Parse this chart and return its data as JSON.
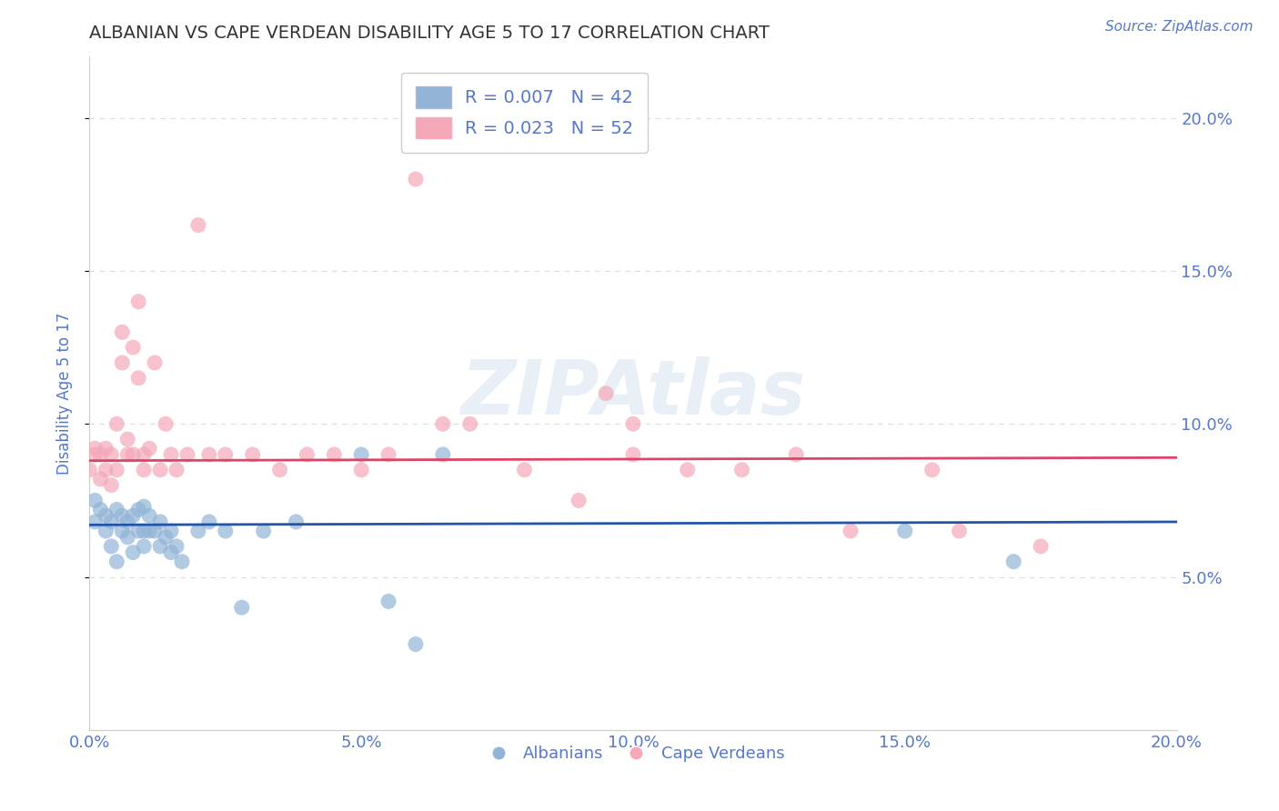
{
  "title": "ALBANIAN VS CAPE VERDEAN DISABILITY AGE 5 TO 17 CORRELATION CHART",
  "source_text": "Source: ZipAtlas.com",
  "ylabel": "Disability Age 5 to 17",
  "xlim": [
    0.0,
    0.2
  ],
  "ylim": [
    0.0,
    0.22
  ],
  "xticks": [
    0.0,
    0.05,
    0.1,
    0.15,
    0.2
  ],
  "xtick_labels": [
    "0.0%",
    "5.0%",
    "10.0%",
    "15.0%",
    "20.0%"
  ],
  "yticks": [
    0.05,
    0.1,
    0.15,
    0.2
  ],
  "ytick_labels": [
    "5.0%",
    "10.0%",
    "15.0%",
    "20.0%"
  ],
  "blue_color": "#92B4D7",
  "pink_color": "#F4A8B8",
  "blue_line_color": "#2255AA",
  "pink_line_color": "#DD4466",
  "legend_blue_r": "R = 0.007",
  "legend_blue_n": "N = 42",
  "legend_pink_r": "R = 0.023",
  "legend_pink_n": "N = 52",
  "blue_intercept": 0.067,
  "blue_slope": 0.005,
  "pink_intercept": 0.088,
  "pink_slope": 0.005,
  "albanians_x": [
    0.001,
    0.001,
    0.002,
    0.003,
    0.003,
    0.004,
    0.004,
    0.005,
    0.005,
    0.006,
    0.006,
    0.007,
    0.007,
    0.008,
    0.008,
    0.009,
    0.009,
    0.01,
    0.01,
    0.01,
    0.011,
    0.011,
    0.012,
    0.013,
    0.013,
    0.014,
    0.015,
    0.015,
    0.016,
    0.017,
    0.02,
    0.022,
    0.025,
    0.028,
    0.032,
    0.038,
    0.05,
    0.055,
    0.06,
    0.065,
    0.15,
    0.17
  ],
  "albanians_y": [
    0.068,
    0.075,
    0.072,
    0.065,
    0.07,
    0.06,
    0.068,
    0.055,
    0.072,
    0.065,
    0.07,
    0.063,
    0.068,
    0.058,
    0.07,
    0.065,
    0.072,
    0.06,
    0.065,
    0.073,
    0.065,
    0.07,
    0.065,
    0.06,
    0.068,
    0.063,
    0.058,
    0.065,
    0.06,
    0.055,
    0.065,
    0.068,
    0.065,
    0.04,
    0.065,
    0.068,
    0.09,
    0.042,
    0.028,
    0.09,
    0.065,
    0.055
  ],
  "capeverdeans_x": [
    0.0,
    0.001,
    0.001,
    0.002,
    0.002,
    0.003,
    0.003,
    0.004,
    0.004,
    0.005,
    0.005,
    0.006,
    0.006,
    0.007,
    0.007,
    0.008,
    0.008,
    0.009,
    0.009,
    0.01,
    0.01,
    0.011,
    0.012,
    0.013,
    0.014,
    0.015,
    0.016,
    0.018,
    0.02,
    0.022,
    0.025,
    0.03,
    0.035,
    0.04,
    0.045,
    0.05,
    0.055,
    0.06,
    0.065,
    0.07,
    0.08,
    0.09,
    0.095,
    0.1,
    0.1,
    0.11,
    0.12,
    0.13,
    0.14,
    0.155,
    0.16,
    0.175
  ],
  "capeverdeans_y": [
    0.085,
    0.09,
    0.092,
    0.082,
    0.09,
    0.085,
    0.092,
    0.08,
    0.09,
    0.085,
    0.1,
    0.12,
    0.13,
    0.09,
    0.095,
    0.125,
    0.09,
    0.115,
    0.14,
    0.085,
    0.09,
    0.092,
    0.12,
    0.085,
    0.1,
    0.09,
    0.085,
    0.09,
    0.165,
    0.09,
    0.09,
    0.09,
    0.085,
    0.09,
    0.09,
    0.085,
    0.09,
    0.18,
    0.1,
    0.1,
    0.085,
    0.075,
    0.11,
    0.09,
    0.1,
    0.085,
    0.085,
    0.09,
    0.065,
    0.085,
    0.065,
    0.06
  ],
  "watermark": "ZIPAtlas",
  "title_color": "#333333",
  "axis_label_color": "#5577CC",
  "tick_color": "#5577CC",
  "background_color": "#FFFFFF",
  "grid_color": "#DDDDDD",
  "title_fontsize": 14,
  "tick_fontsize": 13,
  "legend_fontsize": 14,
  "ylabel_fontsize": 12
}
